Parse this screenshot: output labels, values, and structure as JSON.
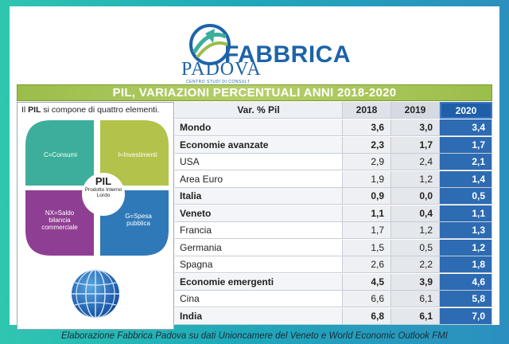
{
  "logo": {
    "brand_top": "PADOVA",
    "brand_sub": "CENTRO STUDI DI CONSULT",
    "brand_main": "FABBRICA"
  },
  "title": "PIL, VARIAZIONI PERCENTUALI ANNI 2018-2020",
  "left_panel": {
    "intro_prefix": "Il ",
    "intro_bold": "PIL",
    "intro_suffix": " si compone di quattro elementi.",
    "quadrants": [
      {
        "label": "C=Consumi",
        "color": "#3cae9b"
      },
      {
        "label": "I=Investimenti",
        "color": "#b3c24a"
      },
      {
        "label": "NX=Saldo bilancia commerciale",
        "color": "#8f3f93"
      },
      {
        "label": "G=Spesa pubblica",
        "color": "#2f79b9"
      }
    ],
    "center_title": "PIL",
    "center_desc": "Prodotto Interno Lordo"
  },
  "chart_data": {
    "type": "table",
    "columns": [
      "Var. % Pil",
      "2018",
      "2019",
      "2020"
    ],
    "rows": [
      {
        "name": "Mondo",
        "bold": true,
        "values": [
          "3,6",
          "3,0",
          "3,4"
        ]
      },
      {
        "name": "Economie avanzate",
        "bold": true,
        "values": [
          "2,3",
          "1,7",
          "1,7"
        ]
      },
      {
        "name": "USA",
        "bold": false,
        "values": [
          "2,9",
          "2,4",
          "2,1"
        ]
      },
      {
        "name": "Area Euro",
        "bold": false,
        "values": [
          "1,9",
          "1,2",
          "1,4"
        ]
      },
      {
        "name": "Italia",
        "bold": true,
        "values": [
          "0,9",
          "0,0",
          "0,5"
        ]
      },
      {
        "name": "Veneto",
        "bold": true,
        "values": [
          "1,1",
          "0,4",
          "1,1"
        ]
      },
      {
        "name": "Francia",
        "bold": false,
        "values": [
          "1,7",
          "1,2",
          "1,3"
        ]
      },
      {
        "name": "Germania",
        "bold": false,
        "values": [
          "1,5",
          "0,5",
          "1,2"
        ]
      },
      {
        "name": "Spagna",
        "bold": false,
        "values": [
          "2,6",
          "2,2",
          "1,8"
        ]
      },
      {
        "name": "Economie emergenti",
        "bold": true,
        "values": [
          "4,5",
          "3,9",
          "4,6"
        ]
      },
      {
        "name": "Cina",
        "bold": false,
        "values": [
          "6,6",
          "6,1",
          "5,8"
        ]
      },
      {
        "name": "India",
        "bold": true,
        "values": [
          "6,8",
          "6,1",
          "7,0"
        ]
      }
    ]
  },
  "footer": "Elaborazione Fabbrica Padova su dati Unioncamere del Veneto e World Economic Outlook FMI",
  "colors": {
    "accent_blue": "#2d6bb3",
    "title_green": "#9bbd4a",
    "frame_teal": "#2fc6b0"
  }
}
